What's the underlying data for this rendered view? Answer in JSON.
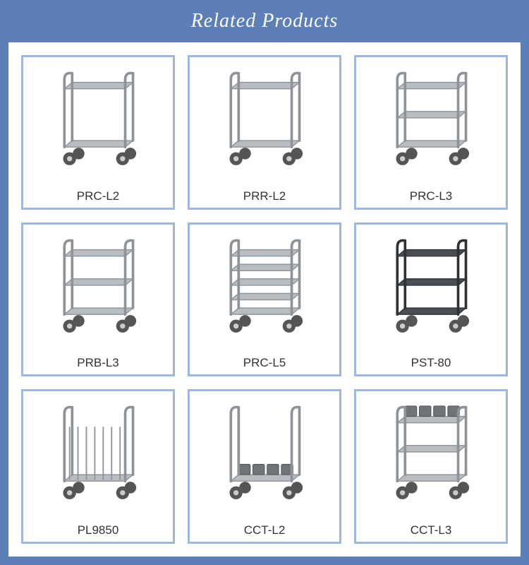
{
  "header": {
    "title": "Related Products"
  },
  "theme": {
    "outer_bg": "#5c7fb8",
    "panel_bg": "#ffffff",
    "card_border": "#9db8e0",
    "card_border_width": 3,
    "title_color": "#ffffff",
    "title_fontsize": 28,
    "title_style": "italic",
    "label_color": "#333333",
    "label_fontsize": 17,
    "grid_cols": 3,
    "grid_rows": 3,
    "grid_gap": 18
  },
  "products": [
    {
      "sku": "PRC-L2",
      "icon": "cart-2-tier",
      "tiers": 2,
      "style": "steel"
    },
    {
      "sku": "PRR-L2",
      "icon": "cart-2-tier",
      "tiers": 2,
      "style": "steel"
    },
    {
      "sku": "PRC-L3",
      "icon": "cart-3-tier",
      "tiers": 3,
      "style": "steel"
    },
    {
      "sku": "PRB-L3",
      "icon": "cart-3-tier",
      "tiers": 3,
      "style": "steel"
    },
    {
      "sku": "PRC-L5",
      "icon": "cart-5-tier",
      "tiers": 5,
      "style": "steel"
    },
    {
      "sku": "PST-80",
      "icon": "cart-service",
      "tiers": 3,
      "style": "plastic-dark"
    },
    {
      "sku": "PL9850",
      "icon": "cart-rack",
      "tiers": 1,
      "style": "steel"
    },
    {
      "sku": "CCT-L2",
      "icon": "cart-cutlery",
      "tiers": 1,
      "style": "steel"
    },
    {
      "sku": "CCT-L3",
      "icon": "cart-cutlery",
      "tiers": 3,
      "style": "steel"
    }
  ]
}
